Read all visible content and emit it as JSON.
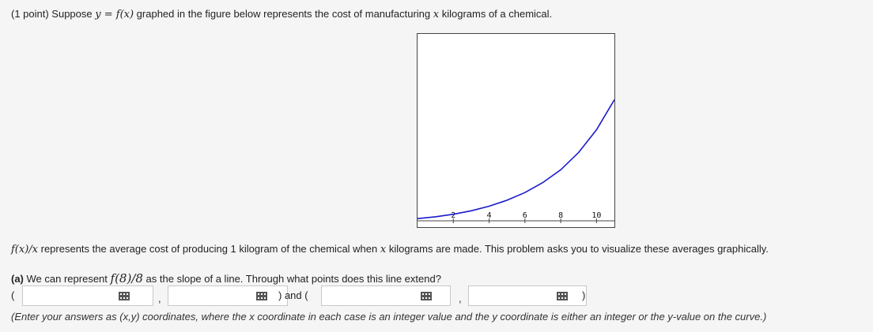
{
  "problem": {
    "intro_prefix": "(1 point) Suppose",
    "intro_math": "y = f(x)",
    "intro_mid": "graphed in the figure below represents the cost of manufacturing",
    "intro_var": "x",
    "intro_suffix": "kilograms of a chemical."
  },
  "chart_data": {
    "type": "line",
    "x_ticks": [
      "2",
      "4",
      "6",
      "8",
      "10"
    ],
    "xlim": [
      0,
      11
    ],
    "ylim": [
      0,
      10
    ],
    "series": [
      {
        "color": "#1a1acc",
        "x": [
          0,
          1,
          2,
          3,
          4,
          5,
          6,
          7,
          8,
          9,
          10,
          11
        ],
        "y": [
          0.12,
          0.22,
          0.36,
          0.55,
          0.8,
          1.13,
          1.55,
          2.1,
          2.8,
          3.75,
          5.0,
          6.65
        ]
      }
    ],
    "grid": false
  },
  "average": {
    "math": "f(x)/x",
    "text1": "represents the average cost of producing 1 kilogram of the chemical when",
    "var": "x",
    "text2": "kilograms are made. This problem asks you to visualize these averages graphically."
  },
  "part_a": {
    "label": "(a)",
    "text1": "We can represent",
    "math": "f(8)/8",
    "text2": "as the slope of a line. Through what points does this line extend?"
  },
  "answer_row": {
    "open1": "(",
    "comma1": ",",
    "close_and": ") and (",
    "comma2": ",",
    "close2": ")",
    "field1_value": "",
    "field2_value": "",
    "field3_value": "",
    "field4_value": ""
  },
  "hint": "(Enter your answers as (x,y) coordinates, where the x coordinate in each case is an integer value and the y coordinate is either an integer or the y-value on the curve.)",
  "icons": {
    "keypad": "keypad-grid-icon"
  }
}
